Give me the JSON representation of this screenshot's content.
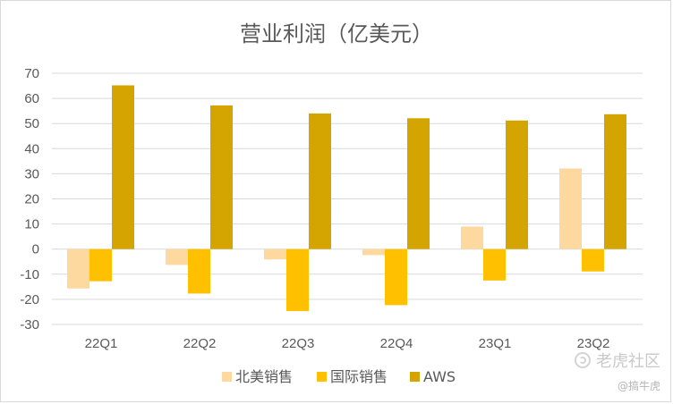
{
  "chart_data": {
    "type": "bar",
    "title": "营业利润（亿美元）",
    "xlabel": "",
    "ylabel": "",
    "categories": [
      "22Q1",
      "22Q2",
      "22Q3",
      "22Q4",
      "23Q1",
      "23Q2"
    ],
    "series": [
      {
        "name": "北美销售",
        "color": "#fdd9a0",
        "values": [
          -15.7,
          -6.3,
          -4.1,
          -2.4,
          8.98,
          32.1
        ]
      },
      {
        "name": "国际销售",
        "color": "#ffc000",
        "values": [
          -12.8,
          -17.7,
          -24.7,
          -22.3,
          -12.5,
          -8.9
        ]
      },
      {
        "name": "AWS",
        "color": "#d4a500",
        "values": [
          65.2,
          57.2,
          54.0,
          52.1,
          51.2,
          53.7
        ]
      }
    ],
    "ylim": [
      -30,
      70
    ],
    "yticks": [
      -30,
      -20,
      -10,
      0,
      10,
      20,
      30,
      40,
      50,
      60,
      70
    ],
    "grid": true,
    "legend_position": "bottom"
  },
  "watermark": {
    "brand": "老虎社区",
    "handle": "@搞牛虎",
    "icon": "tiger-logo-icon"
  }
}
